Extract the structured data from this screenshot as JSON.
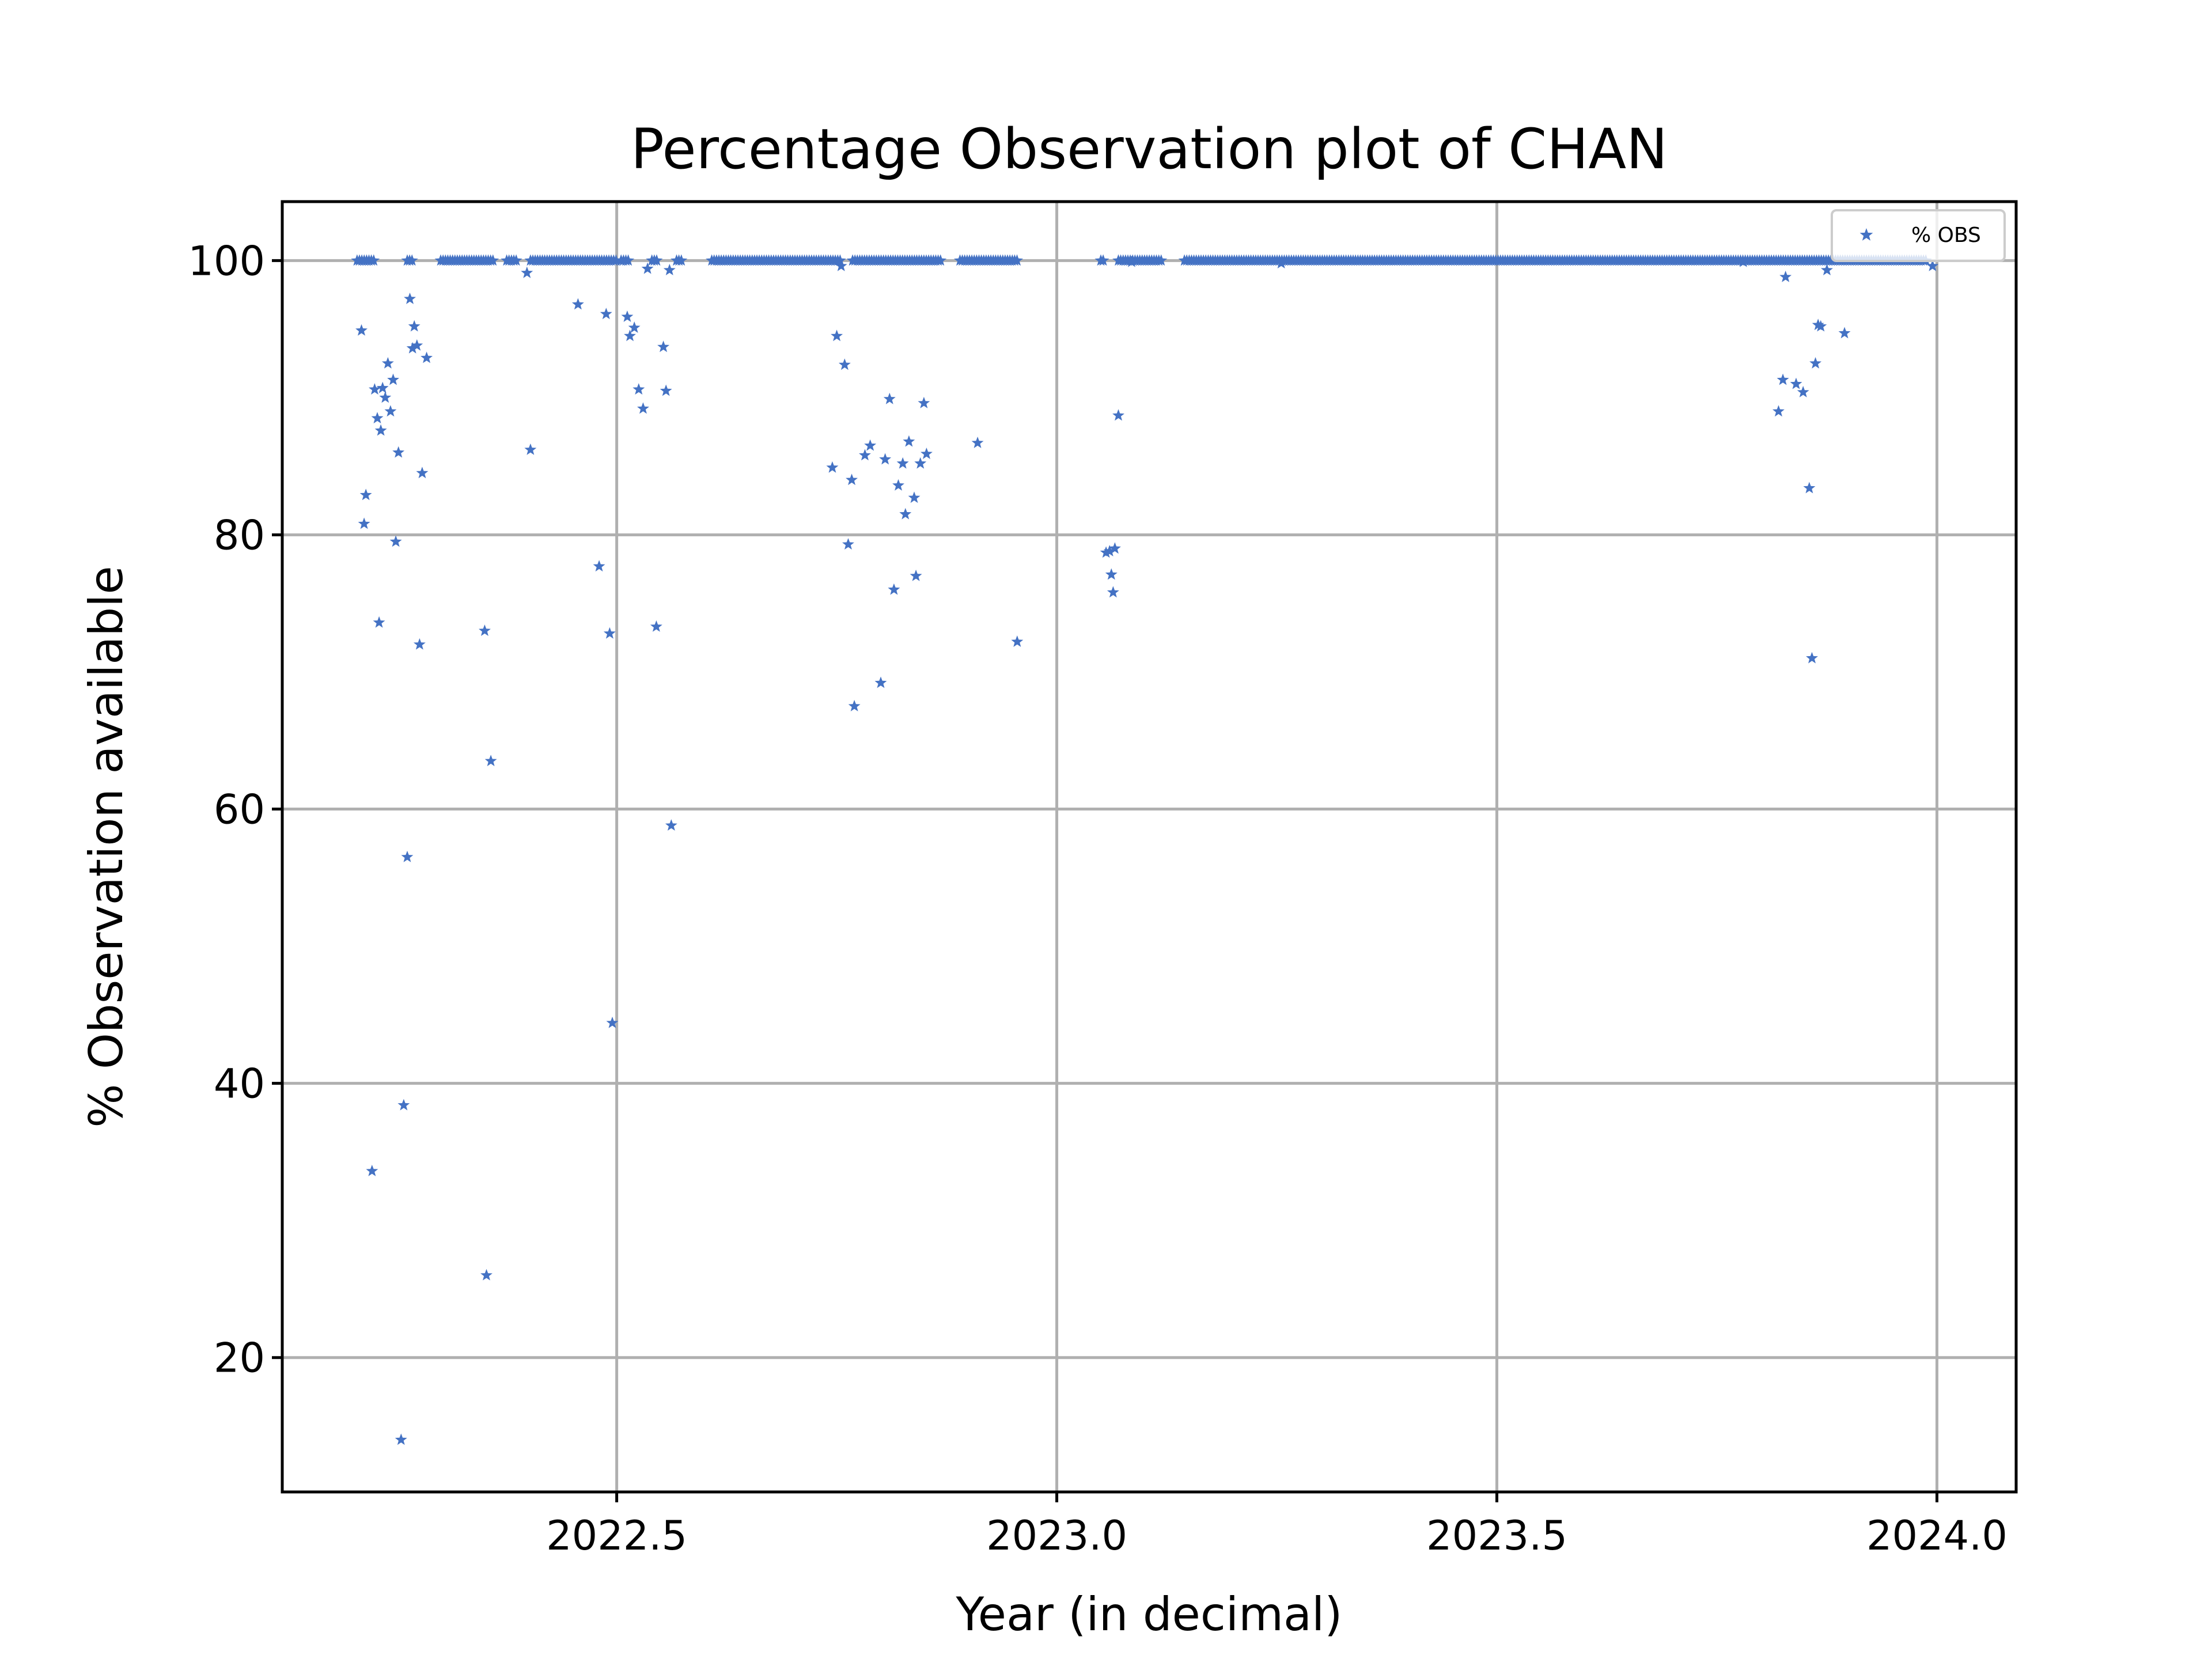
{
  "chart_data": {
    "type": "scatter",
    "title": "Percentage Observation plot of CHAN",
    "xlabel": "Year (in decimal)",
    "ylabel": "% Observation available",
    "xlim": [
      2022.12,
      2024.09
    ],
    "ylim": [
      10.2,
      104.3
    ],
    "xticks": [
      2022.5,
      2023.0,
      2023.5,
      2024.0
    ],
    "xtick_labels": [
      "2022.5",
      "2023.0",
      "2023.5",
      "2024.0"
    ],
    "yticks": [
      20,
      40,
      60,
      80,
      100
    ],
    "ytick_labels": [
      "20",
      "40",
      "60",
      "80",
      "100"
    ],
    "grid": true,
    "legend": {
      "position": "top-right"
    },
    "marker_color": "#4472c4",
    "series": [
      {
        "name": "% OBS",
        "marker": "star",
        "baseline_ranges": [
          [
            2022.205,
            2022.225
          ],
          [
            2022.262,
            2022.27
          ],
          [
            2022.3,
            2022.36
          ],
          [
            2022.375,
            2022.388
          ],
          [
            2022.402,
            2022.5
          ],
          [
            2022.505,
            2022.515
          ],
          [
            2022.54,
            2022.548
          ],
          [
            2022.568,
            2022.575
          ],
          [
            2022.608,
            2022.755
          ],
          [
            2022.768,
            2022.87
          ],
          [
            2022.89,
            2022.955
          ],
          [
            2023.05,
            2023.055
          ],
          [
            2023.07,
            2023.12
          ],
          [
            2023.145,
            2023.99
          ]
        ],
        "baseline_value": 100,
        "points": [
          [
            2022.21,
            94.9
          ],
          [
            2022.213,
            80.8
          ],
          [
            2022.215,
            82.9
          ],
          [
            2022.222,
            33.6
          ],
          [
            2022.225,
            90.6
          ],
          [
            2022.228,
            88.5
          ],
          [
            2022.23,
            73.6
          ],
          [
            2022.232,
            87.6
          ],
          [
            2022.234,
            90.7
          ],
          [
            2022.237,
            90.0
          ],
          [
            2022.24,
            92.5
          ],
          [
            2022.243,
            89.0
          ],
          [
            2022.246,
            91.3
          ],
          [
            2022.249,
            79.5
          ],
          [
            2022.252,
            86.0
          ],
          [
            2022.255,
            14.0
          ],
          [
            2022.258,
            38.4
          ],
          [
            2022.262,
            56.5
          ],
          [
            2022.265,
            97.2
          ],
          [
            2022.268,
            93.6
          ],
          [
            2022.27,
            95.2
          ],
          [
            2022.273,
            93.8
          ],
          [
            2022.276,
            72.0
          ],
          [
            2022.279,
            84.5
          ],
          [
            2022.284,
            92.9
          ],
          [
            2022.35,
            73.0
          ],
          [
            2022.352,
            26.0
          ],
          [
            2022.357,
            63.5
          ],
          [
            2022.398,
            99.1
          ],
          [
            2022.402,
            86.2
          ],
          [
            2022.456,
            96.8
          ],
          [
            2022.48,
            77.7
          ],
          [
            2022.488,
            96.1
          ],
          [
            2022.492,
            72.8
          ],
          [
            2022.495,
            44.4
          ],
          [
            2022.512,
            95.9
          ],
          [
            2022.515,
            94.5
          ],
          [
            2022.52,
            95.1
          ],
          [
            2022.525,
            90.6
          ],
          [
            2022.53,
            89.2
          ],
          [
            2022.535,
            99.4
          ],
          [
            2022.545,
            73.3
          ],
          [
            2022.553,
            93.7
          ],
          [
            2022.556,
            90.5
          ],
          [
            2022.56,
            99.3
          ],
          [
            2022.562,
            58.8
          ],
          [
            2022.745,
            84.9
          ],
          [
            2022.75,
            94.5
          ],
          [
            2022.755,
            99.6
          ],
          [
            2022.759,
            92.4
          ],
          [
            2022.763,
            79.3
          ],
          [
            2022.767,
            84.0
          ],
          [
            2022.77,
            67.5
          ],
          [
            2022.782,
            85.8
          ],
          [
            2022.788,
            86.5
          ],
          [
            2022.8,
            69.2
          ],
          [
            2022.805,
            85.5
          ],
          [
            2022.81,
            89.9
          ],
          [
            2022.815,
            76.0
          ],
          [
            2022.82,
            83.6
          ],
          [
            2022.825,
            85.2
          ],
          [
            2022.828,
            81.5
          ],
          [
            2022.832,
            86.8
          ],
          [
            2022.838,
            82.7
          ],
          [
            2022.84,
            77.0
          ],
          [
            2022.845,
            85.2
          ],
          [
            2022.849,
            89.6
          ],
          [
            2022.852,
            85.9
          ],
          [
            2022.91,
            86.7
          ],
          [
            2022.955,
            72.2
          ],
          [
            2023.056,
            78.7
          ],
          [
            2023.06,
            78.8
          ],
          [
            2023.062,
            77.1
          ],
          [
            2023.064,
            75.8
          ],
          [
            2023.066,
            79.0
          ],
          [
            2023.07,
            88.7
          ],
          [
            2023.085,
            99.9
          ],
          [
            2023.255,
            99.8
          ],
          [
            2023.78,
            99.9
          ],
          [
            2023.82,
            89.0
          ],
          [
            2023.825,
            91.3
          ],
          [
            2023.828,
            98.8
          ],
          [
            2023.84,
            91.0
          ],
          [
            2023.848,
            90.4
          ],
          [
            2023.855,
            83.4
          ],
          [
            2023.858,
            71.0
          ],
          [
            2023.862,
            92.5
          ],
          [
            2023.865,
            95.3
          ],
          [
            2023.868,
            95.2
          ],
          [
            2023.875,
            99.3
          ],
          [
            2023.895,
            94.7
          ],
          [
            2023.995,
            99.6
          ]
        ]
      }
    ]
  }
}
